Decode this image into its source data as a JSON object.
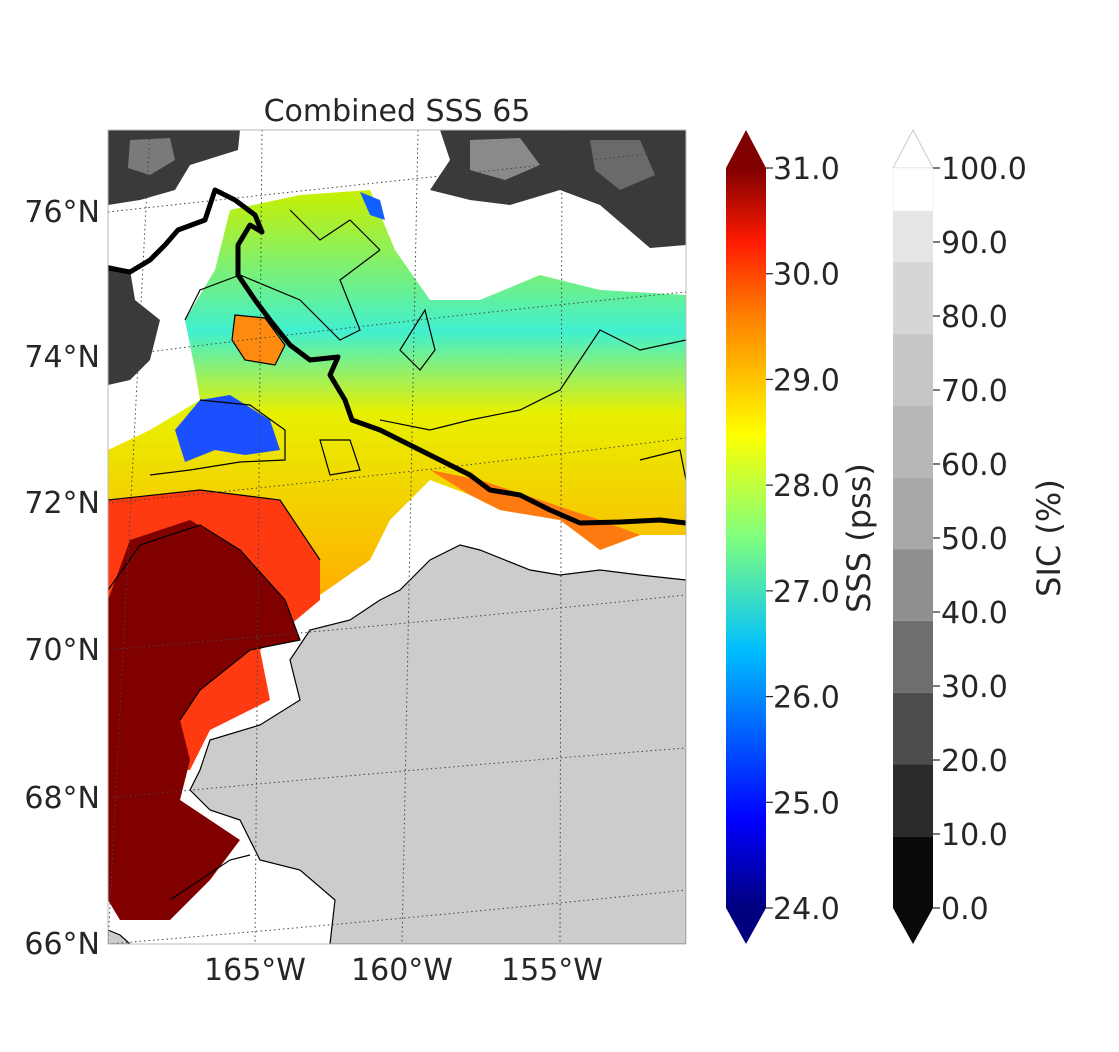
{
  "title": "Combined SSS 65",
  "map": {
    "lat_labels": [
      "76°N",
      "74°N",
      "72°N",
      "70°N",
      "68°N",
      "66°N"
    ],
    "lon_labels": [
      "165°W",
      "160°W",
      "155°W"
    ],
    "land_color": "#cccccc",
    "extent": {
      "lon_min": -170,
      "lon_max": -150,
      "lat_min": 66,
      "lat_max": 77
    }
  },
  "sss_colorbar": {
    "label": "SSS (pss)",
    "ticks": [
      "31.0",
      "30.0",
      "29.0",
      "28.0",
      "27.0",
      "26.0",
      "25.0",
      "24.0"
    ],
    "range": [
      24.0,
      31.0
    ],
    "colormap": "jet",
    "extend": "both"
  },
  "sic_colorbar": {
    "label": "SIC (%)",
    "ticks": [
      "100.0",
      "90.0",
      "80.0",
      "70.0",
      "60.0",
      "50.0",
      "40.0",
      "30.0",
      "20.0",
      "10.0",
      "0.0"
    ],
    "range": [
      0,
      100
    ],
    "colormap": "gray",
    "extend": "both"
  },
  "icons": {
    "track": "ship-track-line"
  }
}
